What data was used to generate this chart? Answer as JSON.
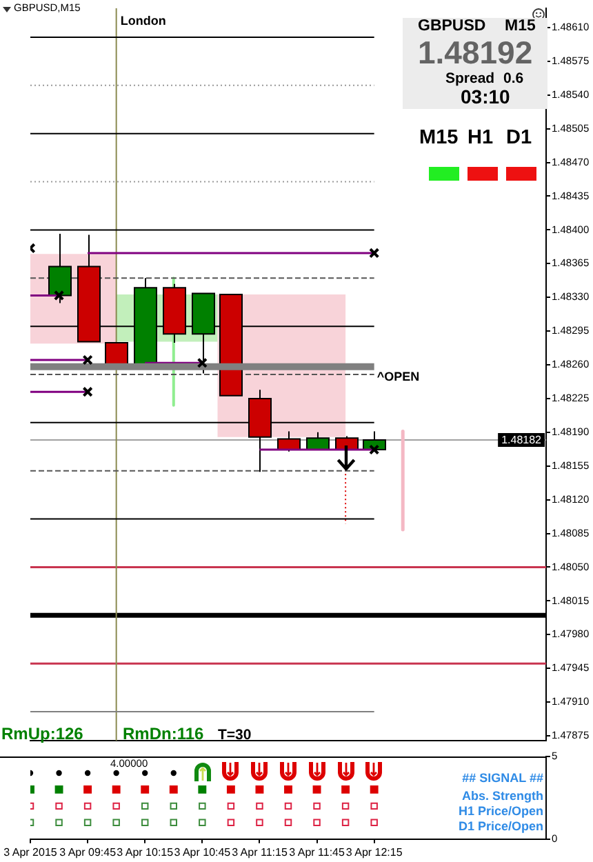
{
  "chart_data": [
    {
      "type": "candlestick",
      "title": "GBPUSD,M15",
      "xlim": [
        "2015-04-03T09:15",
        "2015-04-03T13:45"
      ],
      "ylim": [
        1.4787,
        1.4863
      ],
      "yticks": [
        1.47875,
        {
          "value": 1.4791,
          "label": "1.47910"
        },
        1.47945,
        {
          "value": 1.4798,
          "label": "1.47980"
        },
        1.48015,
        {
          "value": 1.4805,
          "label": "1.48050"
        },
        1.48085,
        {
          "value": 1.4812,
          "label": "1.48120"
        },
        1.48155,
        {
          "value": 1.4819,
          "label": "1.48190"
        },
        1.48225,
        {
          "value": 1.4826,
          "label": "1.48260"
        },
        1.48295,
        {
          "value": 1.4833,
          "label": "1.48330"
        },
        1.48365,
        {
          "value": 1.484,
          "label": "1.48400"
        },
        1.48435,
        {
          "value": 1.4847,
          "label": "1.48470"
        },
        1.48505,
        {
          "value": 1.4854,
          "label": "1.48540"
        },
        1.48575,
        {
          "value": 1.4861,
          "label": "1.48610"
        }
      ],
      "tick_labels": "y",
      "series": [
        {
          "type": "area",
          "x": [
            "2015-04-03T09:15",
            "2015-04-03T10:00"
          ],
          "values": [
            null,
            null
          ],
          "lower": [
            1.48282,
            1.48282
          ],
          "upper": [
            1.48375,
            1.48375
          ],
          "color": "#f8d3d9"
        },
        {
          "type": "area",
          "x": [
            "2015-04-03T10:00",
            "2015-04-03T10:53"
          ],
          "values": [
            null,
            null
          ],
          "lower": [
            1.48284,
            1.48284
          ],
          "upper": [
            1.48333,
            1.48333
          ],
          "color": "#c2efbb"
        },
        {
          "type": "area",
          "x": [
            "2015-04-03T10:53",
            "2015-04-03T12:00"
          ],
          "values": [
            null,
            null
          ],
          "lower": [
            1.48185,
            1.48185
          ],
          "upper": [
            1.48333,
            1.48333
          ],
          "color": "#f8d3d9"
        },
        {
          "type": "line",
          "x": [
            "2015-04-03T09:15",
            "2015-04-03T12:15"
          ],
          "values": [
            1.486,
            1.486
          ],
          "color": "#000000"
        },
        {
          "type": "line",
          "x": [
            "2015-04-03T09:15",
            "2015-04-03T12:15"
          ],
          "values": [
            1.4855,
            1.4855
          ],
          "color": "#999999",
          "line_style": "dotted"
        },
        {
          "type": "line",
          "x": [
            "2015-04-03T09:15",
            "2015-04-03T12:15"
          ],
          "values": [
            1.485,
            1.485
          ],
          "color": "#000000"
        },
        {
          "type": "line",
          "x": [
            "2015-04-03T09:15",
            "2015-04-03T12:15"
          ],
          "values": [
            1.4845,
            1.4845
          ],
          "color": "#999999",
          "line_style": "dotted"
        },
        {
          "type": "line",
          "x": [
            "2015-04-03T09:15",
            "2015-04-03T12:15"
          ],
          "values": [
            1.484,
            1.484
          ],
          "color": "#000000"
        },
        {
          "type": "line",
          "x": [
            "2015-04-03T09:15",
            "2015-04-03T12:15"
          ],
          "values": [
            1.4835,
            1.4835
          ],
          "color": "#555555",
          "line_style": "dashed"
        },
        {
          "type": "line",
          "x": [
            "2015-04-03T09:15",
            "2015-04-03T12:15"
          ],
          "values": [
            1.483,
            1.483
          ],
          "color": "#000000"
        },
        {
          "type": "line",
          "x": [
            "2015-04-03T09:15",
            "2015-04-03T12:15"
          ],
          "values": [
            1.4825,
            1.4825
          ],
          "color": "#555555",
          "line_style": "dashed"
        },
        {
          "type": "line",
          "x": [
            "2015-04-03T09:15",
            "2015-04-03T12:15"
          ],
          "values": [
            1.482,
            1.482
          ],
          "color": "#000000"
        },
        {
          "type": "line",
          "x": [
            "2015-04-03T09:15",
            "2015-04-03T12:15"
          ],
          "values": [
            1.4815,
            1.4815
          ],
          "color": "#555555",
          "line_style": "dashed"
        },
        {
          "type": "line",
          "x": [
            "2015-04-03T09:15",
            "2015-04-03T12:15"
          ],
          "values": [
            1.481,
            1.481
          ],
          "color": "#000000"
        },
        {
          "type": "line",
          "x": [
            "2015-04-03T09:15",
            "2015-04-03T12:15"
          ],
          "values": [
            1.479,
            1.479
          ],
          "color": "#808080"
        },
        {
          "type": "line",
          "name": "^OPEN",
          "x": [
            "2015-04-03T09:15",
            "2015-04-03T12:15"
          ],
          "values": [
            1.48258,
            1.48258
          ],
          "color": "#808080"
        },
        {
          "type": "line",
          "x": [
            "2015-04-03T09:15",
            "2015-04-03T09:30"
          ],
          "values": [
            1.48332,
            1.48332
          ],
          "color": "#800080"
        },
        {
          "type": "line",
          "x": [
            "2015-04-03T09:15",
            "2015-04-03T09:45"
          ],
          "values": [
            1.48265,
            1.48265
          ],
          "color": "#800080"
        },
        {
          "type": "line",
          "x": [
            "2015-04-03T09:15",
            "2015-04-03T09:45"
          ],
          "values": [
            1.48232,
            1.48232
          ],
          "color": "#800080"
        },
        {
          "type": "line",
          "x": [
            "2015-04-03T10:15",
            "2015-04-03T10:45"
          ],
          "values": [
            1.48262,
            1.48262
          ],
          "color": "#800080"
        },
        {
          "type": "line",
          "x": [
            "2015-04-03T09:45",
            "2015-04-03T12:15"
          ],
          "values": [
            1.48376,
            1.48376
          ],
          "color": "#800080"
        },
        {
          "type": "line",
          "x": [
            "2015-04-03T11:15",
            "2015-04-03T12:15"
          ],
          "values": [
            1.48172,
            1.48172
          ],
          "color": "#800080"
        },
        {
          "type": "line",
          "x": [
            "2015-04-03T10:30",
            "2015-04-03T10:30"
          ],
          "values": [
            1.4835,
            1.48218
          ],
          "color": "#90ee90"
        },
        {
          "type": "line",
          "x": [
            "2015-04-03T12:30",
            "2015-04-03T12:30"
          ],
          "values": [
            1.48191,
            1.48089
          ],
          "color": "#f4b8c4"
        },
        {
          "type": "line",
          "x": [
            "2015-04-03T12:00",
            "2015-04-03T12:00"
          ],
          "values": [
            1.48151,
            1.48095
          ],
          "color": "#dd0000",
          "line_style": "dotted"
        },
        {
          "type": "scatter",
          "x": [
            "2015-04-03T09:15",
            "2015-04-03T09:30",
            "2015-04-03T09:45",
            "2015-04-03T09:45",
            "2015-04-03T10:45",
            "2015-04-03T12:15",
            "2015-04-03T12:15"
          ],
          "values": [
            1.48381,
            1.48332,
            1.48265,
            1.48232,
            1.48262,
            1.48376,
            1.48172
          ],
          "color": "#000000",
          "marker": "cross"
        },
        {
          "x": [
            "2015-04-03T09:30",
            "2015-04-03T09:45",
            "2015-04-03T10:00",
            "2015-04-03T10:15",
            "2015-04-03T10:30",
            "2015-04-03T10:45",
            "2015-04-03T11:00",
            "2015-04-03T11:15",
            "2015-04-03T11:30",
            "2015-04-03T11:45",
            "2015-04-03T12:00",
            "2015-04-03T12:15"
          ],
          "ohlc": [
            [
              1.48332,
              1.48396,
              1.48324,
              1.48362
            ],
            [
              1.48362,
              1.48395,
              1.48284,
              1.48284
            ],
            [
              1.48283,
              1.48283,
              1.4826,
              1.4826
            ],
            [
              1.4826,
              1.4835,
              1.4826,
              1.4834
            ],
            [
              1.4834,
              1.48344,
              1.48283,
              1.48292
            ],
            [
              1.48292,
              1.48334,
              1.48251,
              1.48334
            ],
            [
              1.48333,
              1.48333,
              1.48228,
              1.48228
            ],
            [
              1.48225,
              1.48234,
              1.48149,
              1.48185
            ],
            [
              1.48183,
              1.48191,
              1.4817,
              1.48172
            ],
            [
              1.48172,
              1.4819,
              1.48172,
              1.48184
            ],
            [
              1.48184,
              1.48186,
              1.4817,
              1.48172
            ],
            [
              1.48172,
              1.48191,
              1.48172,
              1.48182
            ]
          ],
          "colors": [
            "#008000",
            "#cc0000",
            "#cc0000",
            "#008000",
            "#cc0000",
            "#008000",
            "#cc0000",
            "#cc0000",
            "#cc0000",
            "#008000",
            "#cc0000",
            "#008000"
          ]
        }
      ],
      "ref_lines": [
        {
          "axis": "y",
          "value": 1.4805,
          "color": "#c8344f"
        },
        {
          "axis": "y",
          "value": 1.48,
          "color": "#000000"
        },
        {
          "axis": "y",
          "value": 1.4795,
          "color": "#c8344f"
        },
        {
          "axis": "y",
          "value": 1.48182,
          "label": "1.48182",
          "color": "#a0a0a0"
        },
        {
          "axis": "x",
          "value": "2015-04-03T10:00",
          "label": "London",
          "color": "#8a8a50"
        }
      ],
      "annotations": [
        "GBPUSD",
        "M15",
        "1.48192",
        "Spread",
        "0.6",
        "03:10",
        "M15",
        "H1",
        "D1",
        "RmUp:126",
        "RmDn:116",
        "T=30"
      ]
    },
    {
      "type": "scatter",
      "title": "4.00000",
      "xlim": [
        "2015-04-03T09:15",
        "2015-04-03T13:45"
      ],
      "xticks": [
        {
          "value": "2015-04-03T09:15",
          "label": "3 Apr 2015"
        },
        {
          "value": "2015-04-03T09:45",
          "label": "3 Apr 09:45"
        },
        {
          "value": "2015-04-03T10:15",
          "label": "3 Apr 10:15"
        },
        {
          "value": "2015-04-03T10:45",
          "label": "3 Apr 10:45"
        },
        {
          "value": "2015-04-03T11:15",
          "label": "3 Apr 11:15"
        },
        {
          "value": "2015-04-03T11:45",
          "label": "3 Apr 11:45"
        },
        {
          "value": "2015-04-03T12:15",
          "label": "3 Apr 12:15"
        }
      ],
      "ylim": [
        0,
        5
      ],
      "yticks": [
        0,
        5
      ],
      "series": [
        {
          "x": [
            "2015-04-03T09:15",
            "2015-04-03T09:30",
            "2015-04-03T09:45",
            "2015-04-03T10:00",
            "2015-04-03T10:15",
            "2015-04-03T10:30"
          ],
          "values": [
            4,
            4,
            4,
            4,
            4,
            4
          ],
          "color": "#000000",
          "marker": "circle"
        },
        {
          "x": [
            "2015-04-03T09:15",
            "2015-04-03T09:30",
            "2015-04-03T10:45"
          ],
          "values": [
            3,
            3,
            3
          ],
          "color": "#008000",
          "marker": "square"
        },
        {
          "x": [
            "2015-04-03T09:45",
            "2015-04-03T10:00",
            "2015-04-03T10:15",
            "2015-04-03T10:30",
            "2015-04-03T11:00",
            "2015-04-03T11:15",
            "2015-04-03T11:30",
            "2015-04-03T11:45",
            "2015-04-03T12:00",
            "2015-04-03T12:15"
          ],
          "values": [
            3,
            3,
            3,
            3,
            3,
            3,
            3,
            3,
            3,
            3
          ],
          "color": "#dd0000",
          "marker": "square"
        },
        {
          "x": [
            "2015-04-03T09:15",
            "2015-04-03T09:30",
            "2015-04-03T09:45",
            "2015-04-03T10:00",
            "2015-04-03T11:00",
            "2015-04-03T11:15",
            "2015-04-03T11:30",
            "2015-04-03T11:45",
            "2015-04-03T12:00",
            "2015-04-03T12:15"
          ],
          "values": [
            2,
            2,
            2,
            2,
            2,
            2,
            2,
            2,
            2,
            2
          ],
          "color": "#dd2244",
          "marker": "square"
        },
        {
          "x": [
            "2015-04-03T10:15",
            "2015-04-03T10:30",
            "2015-04-03T10:45"
          ],
          "values": [
            2,
            2,
            2
          ],
          "color": "#3c8c3c",
          "marker": "square"
        },
        {
          "x": [
            "2015-04-03T09:15",
            "2015-04-03T09:30",
            "2015-04-03T09:45",
            "2015-04-03T10:00",
            "2015-04-03T10:15",
            "2015-04-03T10:30",
            "2015-04-03T10:45"
          ],
          "values": [
            1,
            1,
            1,
            1,
            1,
            1,
            1
          ],
          "color": "#3c8c3c",
          "marker": "square"
        },
        {
          "x": [
            "2015-04-03T11:00",
            "2015-04-03T11:15",
            "2015-04-03T11:30",
            "2015-04-03T11:45",
            "2015-04-03T12:00",
            "2015-04-03T12:15"
          ],
          "values": [
            1,
            1,
            1,
            1,
            1,
            1
          ],
          "color": "#dd2244",
          "marker": "square"
        }
      ],
      "annotations": [
        "## SIGNAL ##",
        "Abs. Strength",
        "H1 Price/Open",
        "D1 Price/Open"
      ]
    }
  ]
}
